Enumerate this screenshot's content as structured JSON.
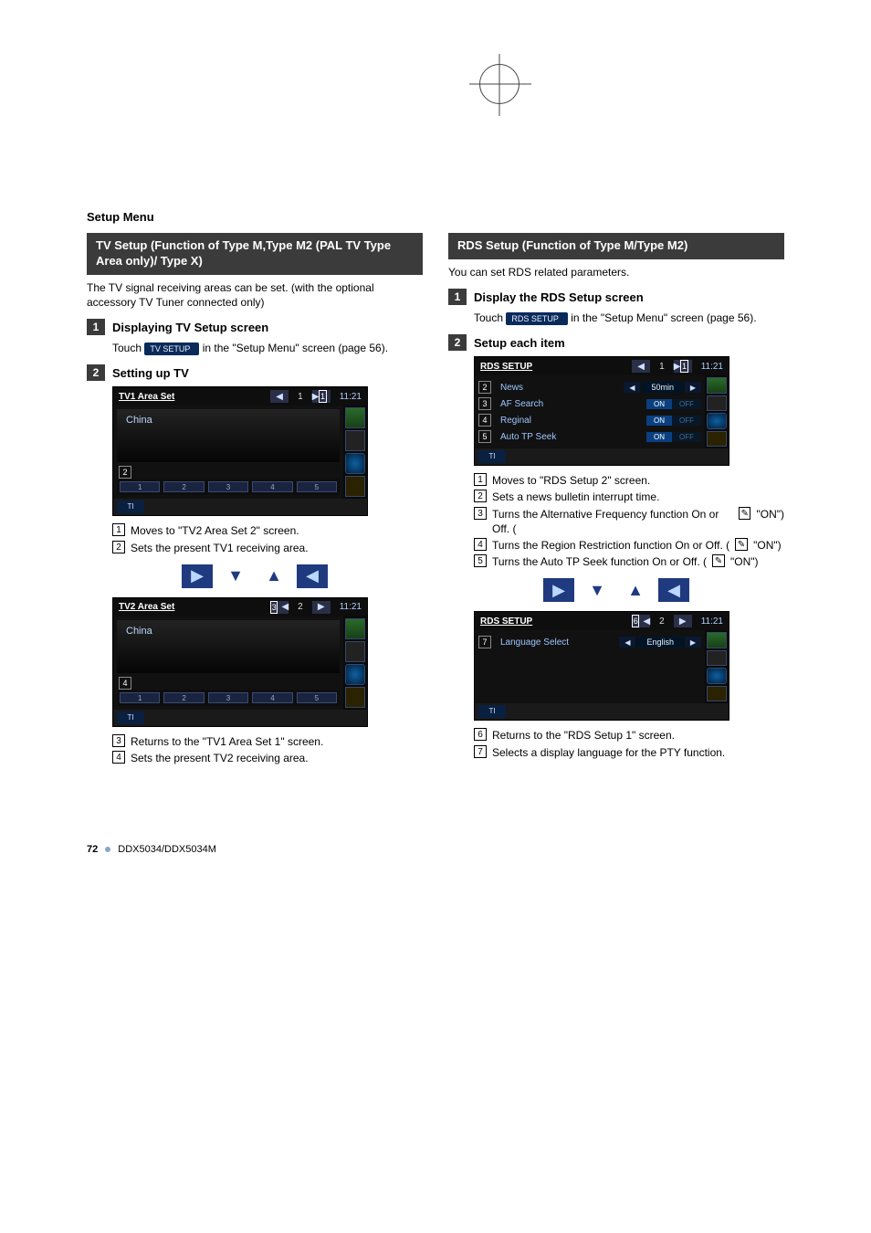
{
  "sectionHeader": "Setup Menu",
  "left": {
    "title": "TV Setup (Function of Type M,Type M2 (PAL TV Type Area only)/ Type X)",
    "intro": "The TV signal receiving areas can be set. (with the optional accessory TV Tuner connected only)",
    "step1": {
      "num": "1",
      "title": "Displaying TV Setup screen",
      "touchLabel": "TV SETUP",
      "tail1": "Touch ",
      "tail2": " in the \"Setup Menu\" screen (page 56)."
    },
    "step2": {
      "num": "2",
      "title": "Setting up TV"
    },
    "scr1": {
      "title": "TV1 Area Set",
      "pageInd": "1",
      "clock": "11:21",
      "tag1": "1",
      "tag2": "2",
      "content": "China",
      "footer": [
        "1",
        "2",
        "3",
        "4",
        "5"
      ],
      "ti": "TI"
    },
    "enum12": [
      {
        "n": "1",
        "t": "Moves to \"TV2 Area Set 2\" screen."
      },
      {
        "n": "2",
        "t": "Sets the present TV1 receiving area."
      }
    ],
    "scr2": {
      "title": "TV2 Area Set",
      "pageInd": "2",
      "clock": "11:21",
      "tag3": "3",
      "tag4": "4",
      "content": "China",
      "footer": [
        "1",
        "2",
        "3",
        "4",
        "5"
      ],
      "ti": "TI"
    },
    "enum34": [
      {
        "n": "3",
        "t": "Returns to the \"TV1 Area Set 1\" screen."
      },
      {
        "n": "4",
        "t": "Sets the present TV2 receiving area."
      }
    ]
  },
  "right": {
    "title": "RDS Setup (Function of Type M/Type M2)",
    "intro": "You can set RDS related parameters.",
    "step1": {
      "num": "1",
      "title": "Display the RDS Setup screen",
      "touchLabel": "RDS SETUP",
      "tail1": "Touch ",
      "tail2": " in the \"Setup Menu\" screen (page 56)."
    },
    "step2": {
      "num": "2",
      "title": "Setup each item"
    },
    "scr1": {
      "title": "RDS SETUP",
      "pageInd": "1",
      "clock": "11:21",
      "tag1": "1",
      "ti": "TI",
      "rows": [
        {
          "tag": "2",
          "label": "News",
          "kind": "value",
          "val": "50min"
        },
        {
          "tag": "3",
          "label": "AF Search",
          "kind": "onoff",
          "on": true
        },
        {
          "tag": "4",
          "label": "Reginal",
          "kind": "onoff",
          "on": true
        },
        {
          "tag": "5",
          "label": "Auto TP Seek",
          "kind": "onoff",
          "on": true
        }
      ]
    },
    "enum15": [
      {
        "n": "1",
        "t": "Moves to \"RDS Setup 2\" screen."
      },
      {
        "n": "2",
        "t": "Sets a news bulletin interrupt time."
      },
      {
        "n": "3",
        "t": "Turns the Alternative Frequency function On or Off. (",
        "pen": true,
        "tOn": " \"ON\")"
      },
      {
        "n": "4",
        "t": "Turns the Region Restriction function On or Off. (",
        "pen": true,
        "tOn": " \"ON\")"
      },
      {
        "n": "5",
        "t": "Turns the Auto TP Seek function On or Off. (",
        "pen": true,
        "tOn": " \"ON\")"
      }
    ],
    "scr2": {
      "title": "RDS SETUP",
      "pageInd": "2",
      "clock": "11:21",
      "tag6": "6",
      "ti": "TI",
      "rows": [
        {
          "tag": "7",
          "label": "Language Select",
          "kind": "value",
          "val": "English"
        }
      ]
    },
    "enum67": [
      {
        "n": "6",
        "t": "Returns to the \"RDS Setup 1\" screen."
      },
      {
        "n": "7",
        "t": "Selects a display language for the PTY function."
      }
    ]
  },
  "footer": {
    "page": "72",
    "model": "DDX5034/DDX5034M"
  },
  "colors": {
    "titlebar": "#3b3b3b",
    "touchbtn": "#0a2a5a",
    "screenTxt": "#bcd7ff"
  }
}
